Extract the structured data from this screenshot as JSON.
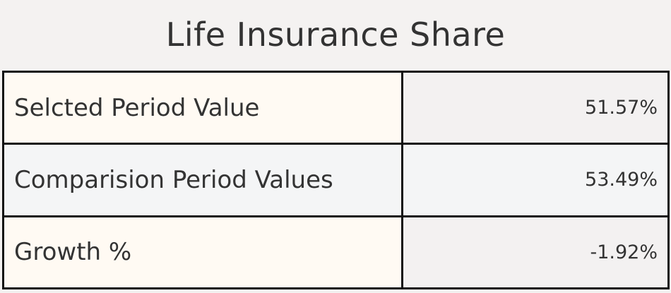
{
  "title": "Life Insurance Share",
  "chart_data": {
    "type": "table",
    "title": "Life Insurance Share",
    "rows": [
      {
        "label": "Selcted Period Value",
        "value": "51.57%"
      },
      {
        "label": "Comparision Period Values",
        "value": "53.49%"
      },
      {
        "label": "Growth %",
        "value": "-1.92%"
      }
    ]
  },
  "colors": {
    "text": "#333333",
    "border": "#111111",
    "background": "#f4f2f1",
    "label_cell_warm": "#fffaf3",
    "row_cool": "#f4f5f6",
    "value_cell": "#f3f1f1"
  }
}
